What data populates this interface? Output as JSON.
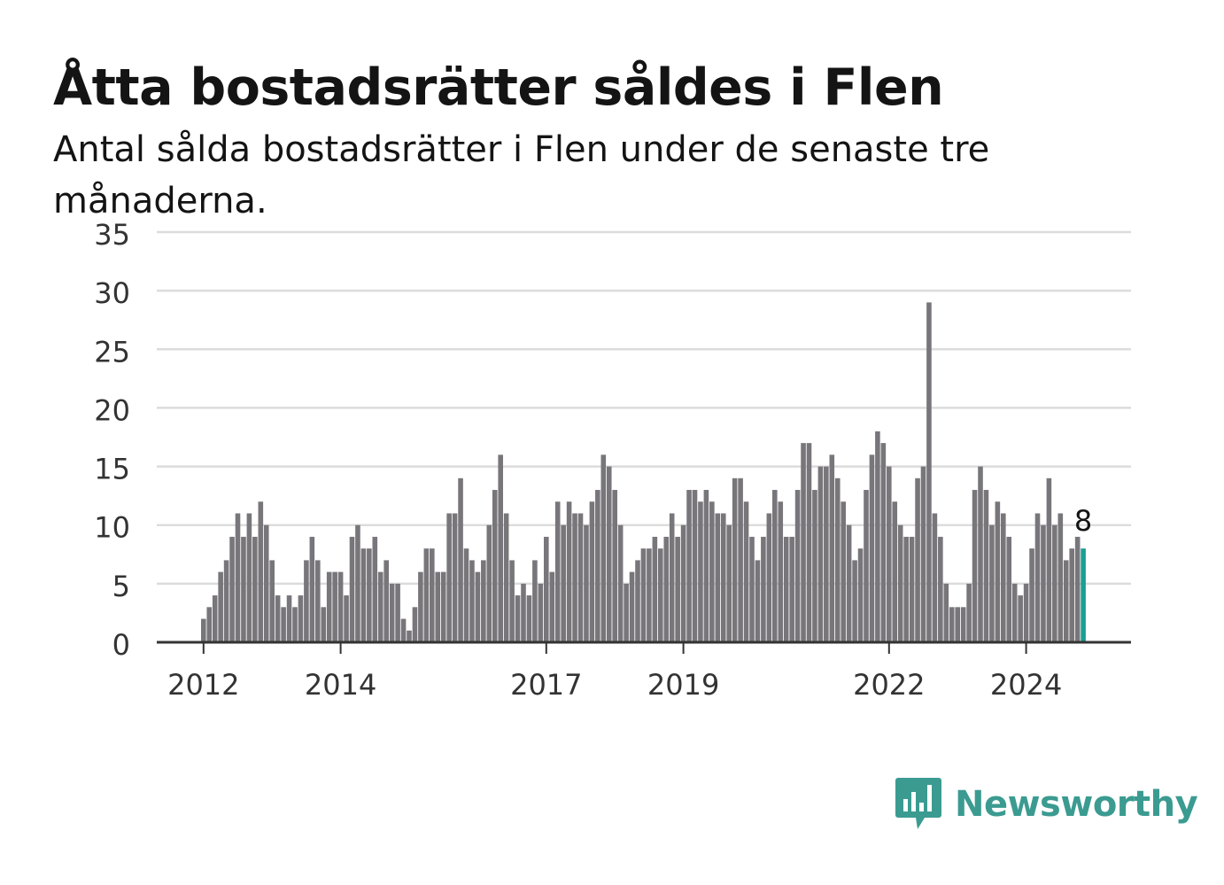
{
  "title": "Åtta bostadsrätter såldes i Flen",
  "subtitle": "Antal sålda bostadsrätter i Flen under de senaste tre månaderna.",
  "brand": {
    "name": "Newsworthy",
    "color": "#3b9b91",
    "icon": "bar-chart-speech-bubble-icon"
  },
  "colors": {
    "bar": "#78767a",
    "highlight": "#1a9e93",
    "grid": "#dcdcdc",
    "axis": "#333333"
  },
  "chart_data": {
    "type": "bar",
    "title": "Åtta bostadsrätter såldes i Flen",
    "subtitle": "Antal sålda bostadsrätter i Flen under de senaste tre månaderna.",
    "xlabel": "",
    "ylabel": "",
    "ylim": [
      0,
      35
    ],
    "yticks": [
      0,
      5,
      10,
      15,
      20,
      25,
      30,
      35
    ],
    "xticks": [
      "2012",
      "2014",
      "2017",
      "2019",
      "2022",
      "2024"
    ],
    "grid": true,
    "legend": "none",
    "first_month": "2012-01",
    "values": [
      2,
      3,
      4,
      6,
      7,
      9,
      11,
      9,
      11,
      9,
      12,
      10,
      7,
      4,
      3,
      4,
      3,
      4,
      7,
      9,
      7,
      3,
      6,
      6,
      6,
      4,
      9,
      10,
      8,
      8,
      9,
      6,
      7,
      5,
      5,
      2,
      1,
      3,
      6,
      8,
      8,
      6,
      6,
      11,
      11,
      14,
      8,
      7,
      6,
      7,
      10,
      13,
      16,
      11,
      7,
      4,
      5,
      4,
      7,
      5,
      9,
      6,
      12,
      10,
      12,
      11,
      11,
      10,
      12,
      13,
      16,
      15,
      13,
      10,
      5,
      6,
      7,
      8,
      8,
      9,
      8,
      9,
      11,
      9,
      10,
      13,
      13,
      12,
      13,
      12,
      11,
      11,
      10,
      14,
      14,
      12,
      9,
      7,
      9,
      11,
      13,
      12,
      9,
      9,
      13,
      17,
      17,
      13,
      15,
      15,
      16,
      14,
      12,
      10,
      7,
      8,
      13,
      16,
      18,
      17,
      15,
      12,
      10,
      9,
      9,
      14,
      15,
      29,
      11,
      9,
      5,
      3,
      3,
      3,
      5,
      13,
      15,
      13,
      10,
      12,
      11,
      9,
      5,
      4,
      5,
      8,
      11,
      10,
      14,
      10,
      11,
      7,
      8,
      9,
      8
    ],
    "highlight_index": 154,
    "annotation": {
      "label": "8",
      "value": 8,
      "index": 154
    }
  }
}
